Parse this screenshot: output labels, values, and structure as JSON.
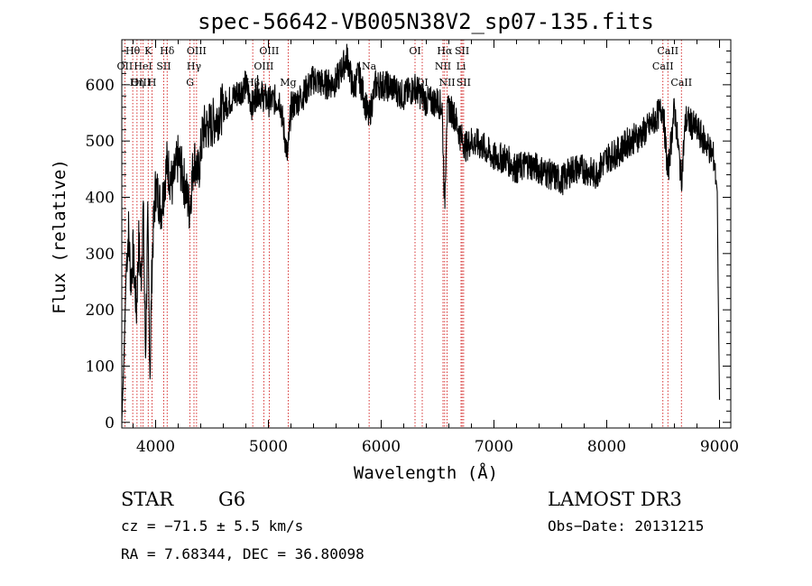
{
  "chart_data": {
    "type": "line",
    "title": "spec-56642-VB005N38V2_sp07-135.fits",
    "xlabel": "Wavelength (Å)",
    "ylabel": "Flux (relative)",
    "xlim": [
      3700,
      9100
    ],
    "ylim": [
      -10,
      680
    ],
    "xticks": [
      4000,
      5000,
      6000,
      7000,
      8000,
      9000
    ],
    "yticks": [
      0,
      100,
      200,
      300,
      400,
      500,
      600
    ],
    "grid": false,
    "legend": "none",
    "line_color": "#000000",
    "marker_color": "#cc0000",
    "spectrum": {
      "name": "",
      "x": [
        3700,
        3720,
        3740,
        3760,
        3780,
        3800,
        3830,
        3850,
        3870,
        3890,
        3910,
        3930,
        3950,
        3970,
        4000,
        4050,
        4100,
        4150,
        4200,
        4250,
        4300,
        4340,
        4380,
        4420,
        4500,
        4600,
        4700,
        4800,
        4860,
        4900,
        5000,
        5100,
        5170,
        5200,
        5300,
        5400,
        5500,
        5600,
        5700,
        5750,
        5800,
        5890,
        5950,
        6000,
        6100,
        6200,
        6300,
        6400,
        6500,
        6540,
        6563,
        6580,
        6600,
        6650,
        6700,
        6750,
        6800,
        6900,
        7000,
        7100,
        7200,
        7300,
        7400,
        7500,
        7600,
        7700,
        7800,
        7900,
        8000,
        8100,
        8200,
        8300,
        8400,
        8498,
        8542,
        8600,
        8662,
        8700,
        8800,
        8900,
        8950,
        8980,
        8990,
        9000
      ],
      "y": [
        0,
        120,
        280,
        340,
        250,
        300,
        200,
        320,
        250,
        380,
        120,
        350,
        90,
        300,
        420,
        380,
        460,
        420,
        470,
        430,
        380,
        470,
        440,
        520,
        530,
        560,
        580,
        600,
        560,
        590,
        570,
        575,
        470,
        560,
        580,
        610,
        600,
        605,
        650,
        590,
        620,
        540,
        600,
        600,
        595,
        580,
        595,
        570,
        570,
        560,
        380,
        540,
        560,
        545,
        510,
        490,
        500,
        490,
        470,
        470,
        450,
        460,
        450,
        440,
        430,
        450,
        450,
        440,
        470,
        480,
        500,
        510,
        530,
        560,
        440,
        560,
        430,
        540,
        520,
        490,
        470,
        410,
        200,
        40
      ]
    },
    "lines": [
      {
        "label": "Hθ",
        "wl": 3797,
        "row": 0
      },
      {
        "label": "OII",
        "wl": 3727,
        "row": 1
      },
      {
        "label": "OIII",
        "wl": 3869,
        "row": 2
      },
      {
        "label": "K",
        "wl": 3934,
        "row": 0
      },
      {
        "label": "HeI",
        "wl": 3889,
        "row": 1
      },
      {
        "label": "Hη",
        "wl": 3835,
        "row": 2
      },
      {
        "label": "H",
        "wl": 3968,
        "row": 2
      },
      {
        "label": "Hδ",
        "wl": 4102,
        "row": 0
      },
      {
        "label": "SII",
        "wl": 4072,
        "row": 1
      },
      {
        "label": "OIII",
        "wl": 4363,
        "row": 0
      },
      {
        "label": "Hγ",
        "wl": 4340,
        "row": 1
      },
      {
        "label": "G",
        "wl": 4305,
        "row": 2
      },
      {
        "label": "Hβ",
        "wl": 4861,
        "row": 2
      },
      {
        "label": "OIII",
        "wl": 5007,
        "row": 0
      },
      {
        "label": "OIII",
        "wl": 4959,
        "row": 1
      },
      {
        "label": "Mg",
        "wl": 5175,
        "row": 2
      },
      {
        "label": "Na",
        "wl": 5893,
        "row": 1
      },
      {
        "label": "OI",
        "wl": 6300,
        "row": 0
      },
      {
        "label": "OI",
        "wl": 6364,
        "row": 2
      },
      {
        "label": "Hα",
        "wl": 6563,
        "row": 0
      },
      {
        "label": "NII",
        "wl": 6548,
        "row": 1
      },
      {
        "label": "NII",
        "wl": 6584,
        "row": 2
      },
      {
        "label": "SII",
        "wl": 6717,
        "row": 0
      },
      {
        "label": "Li",
        "wl": 6708,
        "row": 1
      },
      {
        "label": "SII",
        "wl": 6731,
        "row": 2
      },
      {
        "label": "CaII",
        "wl": 8542,
        "row": 0
      },
      {
        "label": "CaII",
        "wl": 8498,
        "row": 1
      },
      {
        "label": "CaII",
        "wl": 8662,
        "row": 2
      }
    ]
  },
  "info": {
    "object_class": "STAR",
    "subclass": "G6",
    "survey": "LAMOST DR3",
    "cz": "cz = −71.5 ± 5.5 km/s",
    "obs_date": "Obs−Date: 20131215",
    "coords": "RA =   7.68344, DEC =  36.80098"
  }
}
